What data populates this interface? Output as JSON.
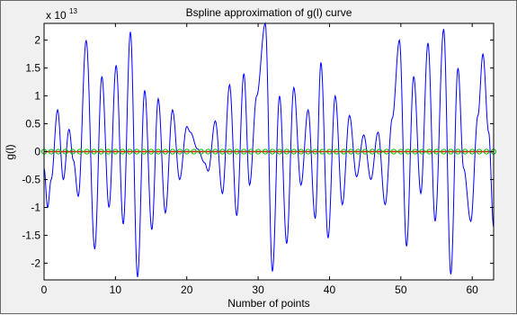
{
  "chart_data": {
    "type": "line",
    "title": "Bspline approximation of g(l) curve",
    "xlabel": "Number of points",
    "ylabel": "g(l)",
    "exponent_label": "x 10",
    "exponent_power": "13",
    "xlim": [
      0,
      63
    ],
    "ylim": [
      -2.3,
      2.3
    ],
    "xticks": [
      0,
      10,
      20,
      30,
      40,
      50,
      60
    ],
    "yticks": [
      -2,
      -1.5,
      -1,
      -0.5,
      0,
      0.5,
      1,
      1.5,
      2
    ],
    "grid": false,
    "series": [
      {
        "color": "#0000ff",
        "style": "line",
        "x": [
          0,
          0.5,
          1,
          1.9,
          2.7,
          3.5,
          4.1,
          4.8,
          5.9,
          7.1,
          8.1,
          9.1,
          10.1,
          11.1,
          12.1,
          13.1,
          14.1,
          15.1,
          16.0,
          17.0,
          18.0,
          19.0,
          20.0,
          20.5,
          21.5,
          22.5,
          23.0,
          24.0,
          25.0,
          26.0,
          27.0,
          28.0,
          28.8,
          29.8,
          31.0,
          32.0,
          33.0,
          34.0,
          35.0,
          36.0,
          37.0,
          38.0,
          38.8,
          39.8,
          40.8,
          41.8,
          42.8,
          43.8,
          44.8,
          45.8,
          46.8,
          47.8,
          48.8,
          49.8,
          50.8,
          51.8,
          52.8,
          53.8,
          54.8,
          56.0,
          57.0,
          58.0,
          58.8,
          59.8,
          60.8,
          61.5,
          62.3,
          63.0
        ],
        "y": [
          -0.3,
          -1.0,
          -0.5,
          0.75,
          -0.5,
          0.4,
          -0.15,
          -0.8,
          2.0,
          -1.75,
          1.35,
          -1.0,
          1.55,
          -1.3,
          2.15,
          -2.25,
          1.1,
          -1.4,
          0.95,
          -1.1,
          0.75,
          -0.5,
          0.45,
          0.35,
          0.05,
          -0.2,
          -0.35,
          0.55,
          -0.75,
          1.2,
          -1.15,
          1.4,
          -0.6,
          1.0,
          2.3,
          -2.15,
          1.0,
          -1.65,
          1.15,
          -0.6,
          0.75,
          -1.2,
          1.6,
          -1.55,
          1.0,
          -0.95,
          0.65,
          -0.45,
          0.3,
          -0.5,
          0.35,
          -0.95,
          0.6,
          2.0,
          -1.7,
          1.35,
          -0.75,
          1.95,
          -1.25,
          2.2,
          -2.2,
          1.5,
          -0.3,
          -1.25,
          0.65,
          1.75,
          0.35,
          -1.35
        ]
      },
      {
        "color": "#ff0000",
        "style": "line",
        "x": [
          0,
          63
        ],
        "y": [
          0,
          0
        ]
      },
      {
        "color": "#00c000",
        "style": "marker-o",
        "marker_step": 1,
        "x_range": [
          0,
          63
        ],
        "y_constant": 0
      }
    ]
  }
}
